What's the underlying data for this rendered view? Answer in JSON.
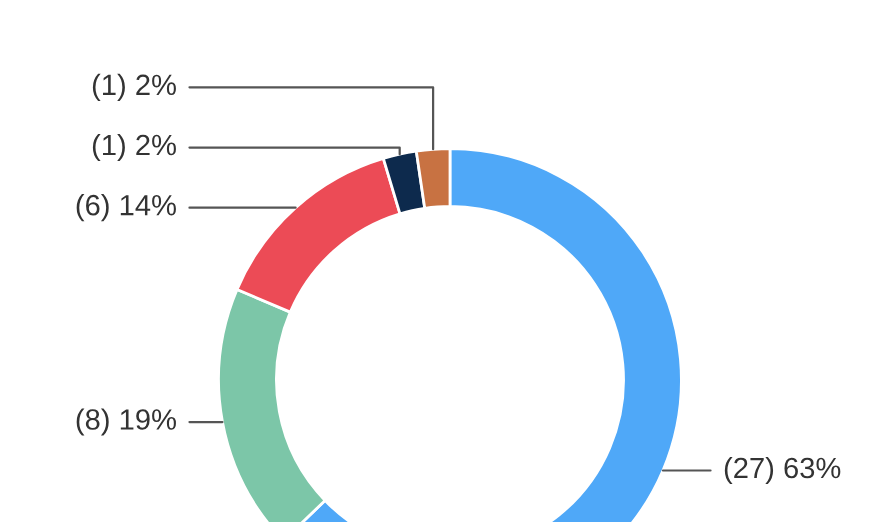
{
  "chart_data": {
    "type": "donut",
    "categories": [
      null,
      null,
      null,
      null,
      null
    ],
    "values": [
      27,
      8,
      6,
      1,
      1
    ],
    "colors": [
      "#4fa8f8",
      "#7cc6a8",
      "#ec4b56",
      "#0d2a4d",
      "#c87242"
    ],
    "value_labels": [
      "(27) 63%",
      "(8) 19%",
      "(6) 14%",
      "(1) 2%",
      "(1) 2%"
    ]
  }
}
